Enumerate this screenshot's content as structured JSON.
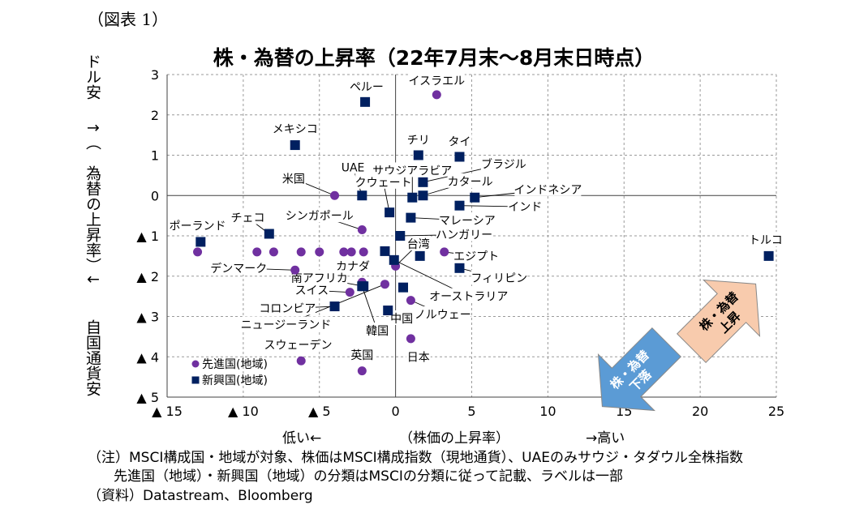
{
  "figure_label": "（図表 1）",
  "chart_data": {
    "type": "scatter",
    "title": "株・為替の上昇率（22年7月末～8月末日時点）",
    "y_label_top": "ドル安",
    "y_label_mid": "↑（　為替の上昇率）↓",
    "y_label_bottom": "自国通貨安",
    "x_axis_low": "低い←",
    "x_axis_title": "（株価の上昇率）",
    "x_axis_high": "→高い",
    "xlim": [
      -15,
      25
    ],
    "ylim": [
      -5,
      3
    ],
    "x_ticks": [
      -15,
      -10,
      -5,
      0,
      5,
      10,
      15,
      20,
      25
    ],
    "x_tick_labels": [
      "▲ 15",
      "▲ 10",
      "▲ 5",
      "0",
      "5",
      "10",
      "15",
      "20",
      "25"
    ],
    "y_ticks": [
      3,
      2,
      1,
      0,
      -1,
      -2,
      -3,
      -4,
      -5
    ],
    "y_tick_labels": [
      "3",
      "2",
      "1",
      "0",
      "▲ 1",
      "▲ 2",
      "▲ 3",
      "▲ 4",
      "▲ 5"
    ],
    "grid": "dashed",
    "legend": {
      "position": "bottom-left",
      "entries": [
        {
          "name": "先進国(地域)",
          "marker": "circle",
          "color": "#7030A0"
        },
        {
          "name": "新興国(地域)",
          "marker": "square",
          "color": "#002060"
        }
      ]
    },
    "series": [
      {
        "name": "先進国(地域)",
        "marker": "circle",
        "color": "#7030A0",
        "points": [
          {
            "x": 2.7,
            "y": 2.5,
            "label": "イスラエル",
            "lx": 2.7,
            "ly": 2.85
          },
          {
            "x": -4.0,
            "y": 0.0,
            "label": "米国",
            "lx": -6.7,
            "ly": 0.42
          },
          {
            "x": -2.2,
            "y": -0.85,
            "label": "シンガポール",
            "lx": -5.0,
            "ly": -0.5
          },
          {
            "x": -13.0,
            "y": -1.4
          },
          {
            "x": -9.1,
            "y": -1.4
          },
          {
            "x": -8.0,
            "y": -1.4
          },
          {
            "x": -6.2,
            "y": -1.4
          },
          {
            "x": -5.0,
            "y": -1.4
          },
          {
            "x": -3.4,
            "y": -1.4
          },
          {
            "x": -2.9,
            "y": -1.4
          },
          {
            "x": -2.1,
            "y": -1.4
          },
          {
            "x": -6.6,
            "y": -1.85,
            "label": "デンマーク",
            "lx": -10.3,
            "ly": -1.8
          },
          {
            "x": -2.2,
            "y": -2.15,
            "label": "カナダ",
            "lx": -2.8,
            "ly": -1.75
          },
          {
            "x": -3.0,
            "y": -2.4,
            "label": "スイス",
            "lx": -5.5,
            "ly": -2.35
          },
          {
            "x": -0.7,
            "y": -2.2,
            "label": "ニュージーランド",
            "lx": -7.2,
            "ly": -3.2
          },
          {
            "x": 1.0,
            "y": -2.6,
            "label": "ノルウェー",
            "lx": 3.1,
            "ly": -2.95
          },
          {
            "x": 3.2,
            "y": -1.4,
            "label": "エジプト",
            "lx": 5.3,
            "ly": -1.5
          },
          {
            "x": 1.0,
            "y": -3.55,
            "label": "日本",
            "lx": 1.5,
            "ly": -4.0
          },
          {
            "x": -6.2,
            "y": -4.1,
            "label": "スウェーデン",
            "lx": -6.4,
            "ly": -3.7
          },
          {
            "x": -2.2,
            "y": -4.35,
            "label": "英国",
            "lx": -2.2,
            "ly": -3.95
          },
          {
            "x": 0.0,
            "y": -1.75,
            "label": "台湾",
            "lx": 1.5,
            "ly": -1.2
          }
        ]
      },
      {
        "name": "新興国(地域)",
        "marker": "square",
        "color": "#002060",
        "points": [
          {
            "x": -2.0,
            "y": 2.32,
            "label": "ペルー",
            "lx": -1.9,
            "ly": 2.7
          },
          {
            "x": -6.6,
            "y": 1.25,
            "label": "メキシコ",
            "lx": -6.6,
            "ly": 1.65
          },
          {
            "x": 1.5,
            "y": 1.0,
            "label": "チリ",
            "lx": 1.5,
            "ly": 1.38
          },
          {
            "x": 4.2,
            "y": 0.96,
            "label": "タイ",
            "lx": 4.2,
            "ly": 1.34
          },
          {
            "x": -2.2,
            "y": 0.0,
            "label": "UAE",
            "lx": -2.8,
            "ly": 0.7
          },
          {
            "x": 1.1,
            "y": -0.05,
            "label": "サウジアラビア",
            "lx": 1.1,
            "ly": 0.62
          },
          {
            "x": 1.8,
            "y": 0.33,
            "label": "ブラジル",
            "lx": 7.1,
            "ly": 0.78
          },
          {
            "x": 1.8,
            "y": 0.0,
            "label": "カタール",
            "lx": 4.9,
            "ly": 0.35
          },
          {
            "x": -0.4,
            "y": -0.42,
            "label": "クウェート",
            "lx": -0.8,
            "ly": 0.33
          },
          {
            "x": 4.2,
            "y": -0.25,
            "label": "インド",
            "lx": 8.5,
            "ly": -0.28
          },
          {
            "x": 5.2,
            "y": -0.05,
            "label": "インドネシア",
            "lx": 10.0,
            "ly": 0.15
          },
          {
            "x": 1.0,
            "y": -0.55,
            "label": "マレーシア",
            "lx": 4.7,
            "ly": -0.62
          },
          {
            "x": 0.3,
            "y": -1.0,
            "label": "ハンガリー",
            "lx": 4.5,
            "ly": -0.97
          },
          {
            "x": 1.6,
            "y": -1.5
          },
          {
            "x": -0.7,
            "y": -1.38
          },
          {
            "x": 4.2,
            "y": -1.8,
            "label": "フィリピン",
            "lx": 6.8,
            "ly": -2.05
          },
          {
            "x": -0.1,
            "y": -1.6,
            "label": "オーストラリア",
            "lx": 4.8,
            "ly": -2.5
          },
          {
            "x": -2.1,
            "y": -2.25,
            "label": "南アフリカ",
            "lx": -5.0,
            "ly": -2.05
          },
          {
            "x": -12.8,
            "y": -1.15,
            "label": "ポーランド",
            "lx": -13.0,
            "ly": -0.75
          },
          {
            "x": -8.3,
            "y": -0.95,
            "label": "チェコ",
            "lx": -9.7,
            "ly": -0.55
          },
          {
            "x": 0.5,
            "y": -2.28
          },
          {
            "x": -4.0,
            "y": -2.75,
            "label": "コロンビア",
            "lx": -7.1,
            "ly": -2.8
          },
          {
            "x": -0.5,
            "y": -2.85,
            "label": "中国",
            "lx": 0.4,
            "ly": -3.05
          },
          {
            "x": -2.2,
            "y": -2.25,
            "label": "韓国",
            "lx": -1.2,
            "ly": -3.35
          },
          {
            "x": 24.5,
            "y": -1.5,
            "label": "トルコ",
            "lx": 24.3,
            "ly": -1.1
          }
        ]
      }
    ],
    "annotations": [
      {
        "text": "株・為替上昇",
        "lines": [
          "株・為替",
          "上昇"
        ],
        "direction": "up-right",
        "color": "#F8CBAD"
      },
      {
        "text": "株・為替下落",
        "lines": [
          "株・為替",
          "下落"
        ],
        "direction": "down-left",
        "color": "#5B9BD5"
      }
    ]
  },
  "notes": [
    "（注）MSCI構成国・地域が対象、株価はMSCI構成指数（現地通貨）、UAEのみサウジ・タダウル全株指数",
    "先進国（地域）・新興国（地域）の分類はMSCIの分類に従って記載、ラベルは一部",
    "（資料）Datastream、Bloomberg"
  ]
}
